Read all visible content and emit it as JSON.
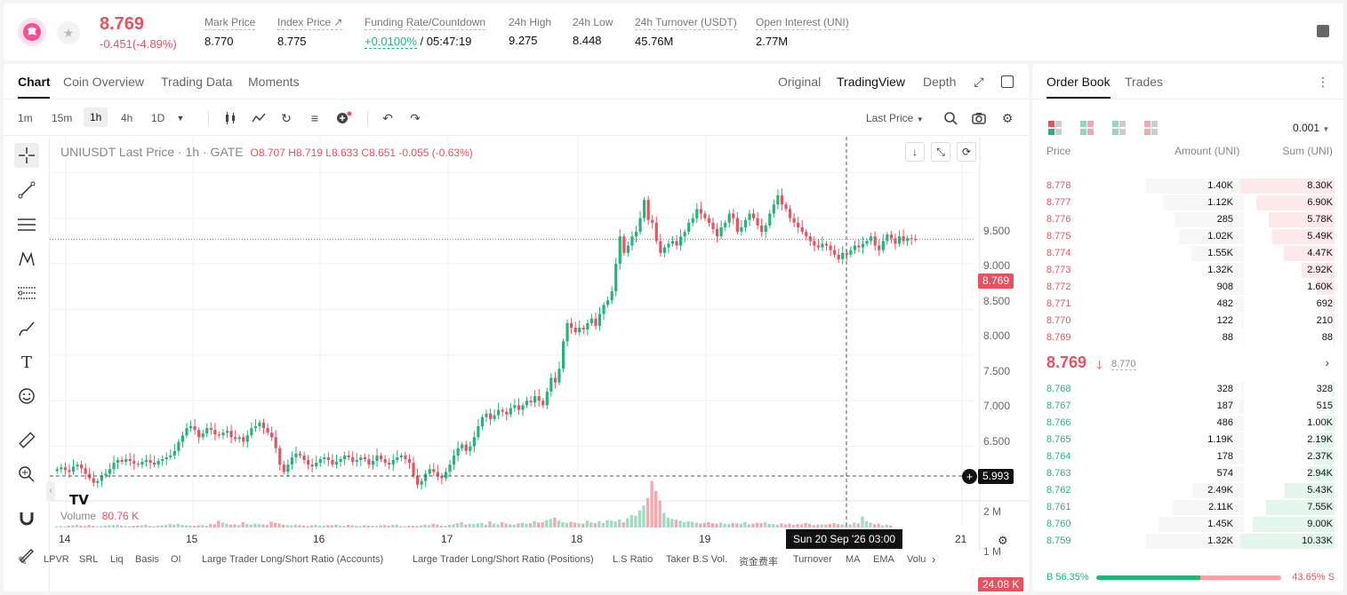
{
  "ticker": {
    "last_price": "8.769",
    "change": "-0.451(-4.89%)",
    "mark_price_label": "Mark Price",
    "mark_price": "8.770",
    "index_price_label": "Index Price ↗",
    "index_price": "8.775",
    "funding_label": "Funding Rate/Countdown",
    "funding_rate": "+0.0100%",
    "countdown": "/ 05:47:19",
    "high_label": "24h High",
    "high": "9.275",
    "low_label": "24h Low",
    "low": "8.448",
    "turnover_label": "24h Turnover (USDT)",
    "turnover": "45.76M",
    "oi_label": "Open Interest (UNI)",
    "oi": "2.77M"
  },
  "chart_tabs": [
    "Chart",
    "Coin Overview",
    "Trading Data",
    "Moments"
  ],
  "view_tabs": [
    "Original",
    "TradingView",
    "Depth"
  ],
  "intervals": [
    "1m",
    "15m",
    "1h",
    "4h",
    "1D"
  ],
  "price_type": "Last Price",
  "legend": {
    "symbol": "UNIUSDT Last Price · 1h · GATE",
    "o": "O8.707",
    "h": "H8.719",
    "l": "L8.633",
    "c": "C8.651",
    "chg": "-0.055 (-0.63%)"
  },
  "volume_legend": {
    "label": "Volume",
    "value": "80.76 K"
  },
  "price_tags": {
    "current": "8.769",
    "crosshair": "5.993",
    "volume": "24.08 K"
  },
  "y_labels": [
    "9.500",
    "9.000",
    "8.500",
    "8.000",
    "7.500",
    "7.000",
    "6.500"
  ],
  "vol_labels": [
    "2 M",
    "1 M"
  ],
  "x_labels": [
    "14",
    "15",
    "16",
    "17",
    "18",
    "19",
    "21"
  ],
  "crosshair_date": "Sun 20 Sep '26   03:00",
  "indicators": [
    "LPVR",
    "SRL",
    "Liq",
    "Basis",
    "OI",
    "Large Trader Long/Short Ratio (Accounts)",
    "Large Trader Long/Short Ratio (Positions)",
    "L.S Ratio",
    "Taker B.S Vol.",
    "资金费率",
    "Turnover",
    "MA",
    "EMA",
    "Volu"
  ],
  "orderbook": {
    "tabs": [
      "Order Book",
      "Trades"
    ],
    "precision": "0.001",
    "headers": {
      "price": "Price",
      "amount": "Amount (UNI)",
      "sum": "Sum (UNI)"
    },
    "asks": [
      {
        "price": "8.778",
        "amount": "1.40K",
        "sum": "8.30K",
        "depth": 1.0
      },
      {
        "price": "8.777",
        "amount": "1.12K",
        "sum": "6.90K",
        "depth": 0.83
      },
      {
        "price": "8.776",
        "amount": "285",
        "sum": "5.78K",
        "depth": 0.7
      },
      {
        "price": "8.775",
        "amount": "1.02K",
        "sum": "5.49K",
        "depth": 0.66
      },
      {
        "price": "8.774",
        "amount": "1.55K",
        "sum": "4.47K",
        "depth": 0.54
      },
      {
        "price": "8.773",
        "amount": "1.32K",
        "sum": "2.92K",
        "depth": 0.35
      },
      {
        "price": "8.772",
        "amount": "908",
        "sum": "1.60K",
        "depth": 0.19
      },
      {
        "price": "8.771",
        "amount": "482",
        "sum": "692",
        "depth": 0.08
      },
      {
        "price": "8.770",
        "amount": "122",
        "sum": "210",
        "depth": 0.03
      },
      {
        "price": "8.769",
        "amount": "88",
        "sum": "88",
        "depth": 0.01
      }
    ],
    "mid_price": "8.769",
    "mid_mark": "8.770",
    "bids": [
      {
        "price": "8.768",
        "amount": "328",
        "sum": "328",
        "depth": 0.03
      },
      {
        "price": "8.767",
        "amount": "187",
        "sum": "515",
        "depth": 0.05
      },
      {
        "price": "8.766",
        "amount": "486",
        "sum": "1.00K",
        "depth": 0.1
      },
      {
        "price": "8.765",
        "amount": "1.19K",
        "sum": "2.19K",
        "depth": 0.21
      },
      {
        "price": "8.764",
        "amount": "178",
        "sum": "2.37K",
        "depth": 0.23
      },
      {
        "price": "8.763",
        "amount": "574",
        "sum": "2.94K",
        "depth": 0.28
      },
      {
        "price": "8.762",
        "amount": "2.49K",
        "sum": "5.43K",
        "depth": 0.53
      },
      {
        "price": "8.761",
        "amount": "2.11K",
        "sum": "7.55K",
        "depth": 0.73
      },
      {
        "price": "8.760",
        "amount": "1.45K",
        "sum": "9.00K",
        "depth": 0.87
      },
      {
        "price": "8.759",
        "amount": "1.32K",
        "sum": "10.33K",
        "depth": 1.0
      }
    ],
    "buy_ratio": "B 56.35%",
    "sell_ratio": "43.65% S",
    "buy_fraction": 0.5635
  },
  "colors": {
    "up": "#21b57a",
    "down": "#e8515f",
    "up_vol": "#9fdcc1",
    "down_vol": "#f5a8b0"
  },
  "chart_data": {
    "type": "candlestick",
    "title": "UNIUSDT Last Price · 1h · GATE",
    "x_ticks": [
      "14",
      "15",
      "16",
      "17",
      "18",
      "19",
      "21"
    ],
    "ylim": [
      6.0,
      9.6
    ],
    "closes": [
      6.25,
      6.27,
      6.24,
      6.22,
      6.28,
      6.3,
      6.26,
      6.2,
      6.15,
      6.1,
      6.12,
      6.18,
      6.2,
      6.25,
      6.32,
      6.35,
      6.33,
      6.36,
      6.34,
      6.31,
      6.3,
      6.33,
      6.35,
      6.32,
      6.3,
      6.34,
      6.36,
      6.38,
      6.4,
      6.45,
      6.55,
      6.62,
      6.7,
      6.72,
      6.68,
      6.6,
      6.64,
      6.7,
      6.68,
      6.63,
      6.62,
      6.65,
      6.67,
      6.6,
      6.58,
      6.6,
      6.55,
      6.62,
      6.7,
      6.72,
      6.76,
      6.7,
      6.65,
      6.6,
      6.48,
      6.3,
      6.22,
      6.3,
      6.38,
      6.42,
      6.4,
      6.35,
      6.3,
      6.28,
      6.32,
      6.36,
      6.38,
      6.35,
      6.3,
      6.33,
      6.36,
      6.4,
      6.38,
      6.33,
      6.35,
      6.38,
      6.36,
      6.3,
      6.34,
      6.4,
      6.36,
      6.32,
      6.3,
      6.35,
      6.38,
      6.4,
      6.36,
      6.32,
      6.18,
      6.08,
      6.12,
      6.2,
      6.25,
      6.22,
      6.18,
      6.15,
      6.22,
      6.3,
      6.4,
      6.48,
      6.52,
      6.45,
      6.5,
      6.6,
      6.72,
      6.82,
      6.86,
      6.8,
      6.84,
      6.9,
      6.88,
      6.85,
      6.92,
      6.95,
      6.9,
      6.95,
      7.0,
      6.98,
      7.05,
      7.0,
      6.95,
      7.1,
      7.25,
      7.2,
      7.35,
      7.65,
      7.85,
      7.8,
      7.75,
      7.8,
      7.78,
      7.85,
      7.9,
      7.82,
      7.95,
      8.05,
      8.1,
      8.2,
      8.5,
      8.8,
      8.62,
      8.7,
      8.8,
      8.85,
      9.0,
      9.2,
      8.98,
      8.95,
      8.75,
      8.62,
      8.68,
      8.72,
      8.75,
      8.7,
      8.8,
      8.85,
      8.95,
      9.0,
      9.1,
      9.05,
      9.0,
      8.95,
      8.88,
      8.8,
      8.9,
      8.95,
      9.05,
      9.0,
      8.85,
      8.9,
      8.98,
      9.05,
      9.0,
      8.92,
      8.85,
      8.92,
      9.05,
      9.15,
      9.25,
      9.15,
      9.1,
      9.0,
      8.95,
      8.9,
      8.85,
      8.8,
      8.75,
      8.7,
      8.68,
      8.72,
      8.7,
      8.65,
      8.6,
      8.55,
      8.62,
      8.6,
      8.65,
      8.7,
      8.68,
      8.72,
      8.75,
      8.8,
      8.7,
      8.65,
      8.75,
      8.82,
      8.78,
      8.72,
      8.8,
      8.75,
      8.78,
      8.77,
      8.769
    ],
    "volumes_k": [
      50,
      60,
      40,
      70,
      90,
      120,
      80,
      60,
      110,
      70,
      50,
      60,
      80,
      90,
      100,
      110,
      80,
      60,
      50,
      70,
      80,
      90,
      120,
      60,
      50,
      80,
      90,
      100,
      140,
      120,
      150,
      110,
      90,
      80,
      70,
      90,
      100,
      80,
      150,
      140,
      280,
      200,
      160,
      120,
      130,
      100,
      220,
      150,
      120,
      160,
      140,
      130,
      110,
      240,
      190,
      160,
      120,
      100,
      90,
      120,
      100,
      80,
      60,
      90,
      110,
      80,
      70,
      100,
      90,
      120,
      80,
      70,
      110,
      90,
      80,
      60,
      90,
      70,
      80,
      60,
      90,
      100,
      80,
      110,
      120,
      60,
      50,
      70,
      80,
      60,
      90,
      120,
      100,
      160,
      120,
      80,
      70,
      110,
      130,
      180,
      220,
      120,
      150,
      140,
      170,
      180,
      120,
      250,
      160,
      130,
      220,
      160,
      140,
      110,
      170,
      190,
      150,
      180,
      260,
      210,
      220,
      300,
      350,
      400,
      280,
      220,
      190,
      230,
      200,
      170,
      160,
      280,
      210,
      180,
      260,
      190,
      300,
      280,
      240,
      330,
      210,
      380,
      520,
      480,
      700,
      900,
      1200,
      1900,
      1500,
      1100,
      600,
      400,
      350,
      320,
      280,
      220,
      260,
      240,
      200,
      170,
      190,
      220,
      180,
      160,
      200,
      150,
      140,
      190,
      170,
      150,
      220,
      130,
      160,
      190,
      180,
      210,
      150,
      140,
      120,
      170,
      130,
      160,
      110,
      140,
      130,
      190,
      150,
      100,
      120,
      130,
      120,
      150,
      180,
      140,
      120,
      100,
      130,
      210,
      160,
      450,
      260,
      200,
      140,
      160,
      90,
      120,
      80
    ]
  }
}
